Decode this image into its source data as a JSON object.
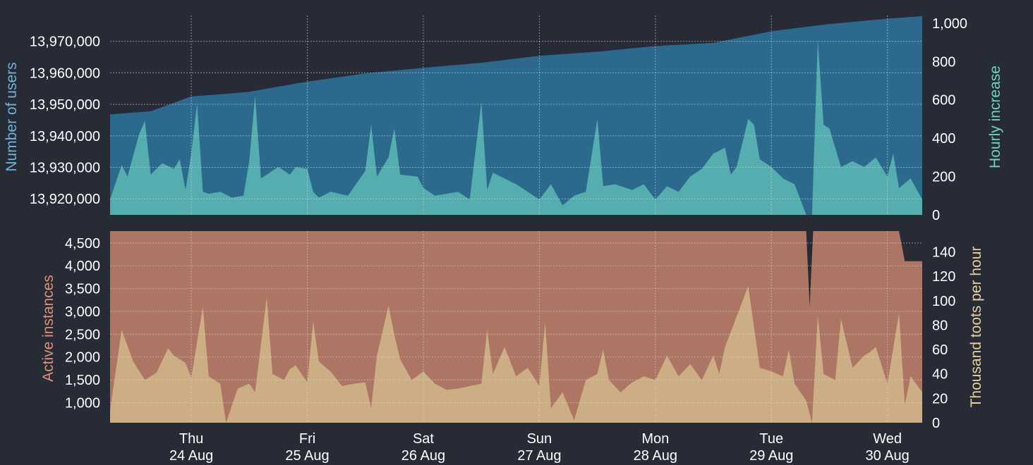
{
  "colors": {
    "background": "#272b36",
    "users": "#2c6a8d",
    "hourly_increase": "#56adb0",
    "instances": "#ad7563",
    "toots": "#cdae84",
    "users_label": "#6fb3d8",
    "hourly_label": "#6fd3c2",
    "instances_label": "#e0907a",
    "toots_label": "#e6d29a"
  },
  "chart_data": [
    {
      "type": "area",
      "x_ticks": [
        {
          "day": "Thu",
          "date": "24 Aug"
        },
        {
          "day": "Fri",
          "date": "25 Aug"
        },
        {
          "day": "Sat",
          "date": "26 Aug"
        },
        {
          "day": "Sun",
          "date": "27 Aug"
        },
        {
          "day": "Mon",
          "date": "28 Aug"
        },
        {
          "day": "Tue",
          "date": "29 Aug"
        },
        {
          "day": "Wed",
          "date": "30 Aug"
        }
      ],
      "x_range_days": [
        -0.7,
        6.3
      ],
      "ylabel_left": "Number of users",
      "ylabel_right": "Hourly increase",
      "ylim_left": [
        13914900,
        13978200
      ],
      "ylim_right": [
        0,
        1040
      ],
      "yticks_left": [
        "13,920,000",
        "13,930,000",
        "13,940,000",
        "13,950,000",
        "13,960,000",
        "13,970,000"
      ],
      "yticks_right": [
        "0",
        "200",
        "400",
        "600",
        "800",
        "1,000"
      ],
      "grid": true,
      "series": [
        {
          "name": "Number of users",
          "axis": "left",
          "points": [
            [
              -0.7,
              13946800
            ],
            [
              -0.35,
              13947800
            ],
            [
              0,
              13952500
            ],
            [
              0.3,
              13953300
            ],
            [
              0.5,
              13954000
            ],
            [
              1,
              13957200
            ],
            [
              1.5,
              13959800
            ],
            [
              2,
              13961600
            ],
            [
              2.5,
              13963200
            ],
            [
              3,
              13965400
            ],
            [
              3.5,
              13966700
            ],
            [
              4,
              13968500
            ],
            [
              4.5,
              13969500
            ],
            [
              5,
              13973200
            ],
            [
              5.3,
              13974600
            ],
            [
              5.5,
              13975500
            ],
            [
              6,
              13977200
            ],
            [
              6.3,
              13978000
            ]
          ]
        },
        {
          "name": "Hourly increase",
          "axis": "right",
          "points": [
            [
              -0.7,
              80
            ],
            [
              -0.6,
              260
            ],
            [
              -0.55,
              200
            ],
            [
              -0.45,
              420
            ],
            [
              -0.4,
              490
            ],
            [
              -0.35,
              210
            ],
            [
              -0.25,
              270
            ],
            [
              -0.15,
              240
            ],
            [
              -0.1,
              290
            ],
            [
              -0.05,
              130
            ],
            [
              0,
              320
            ],
            [
              0.05,
              580
            ],
            [
              0.1,
              120
            ],
            [
              0.15,
              110
            ],
            [
              0.25,
              120
            ],
            [
              0.35,
              90
            ],
            [
              0.45,
              100
            ],
            [
              0.5,
              280
            ],
            [
              0.55,
              620
            ],
            [
              0.6,
              190
            ],
            [
              0.7,
              230
            ],
            [
              0.75,
              250
            ],
            [
              0.85,
              210
            ],
            [
              0.9,
              250
            ],
            [
              1,
              240
            ],
            [
              1.05,
              120
            ],
            [
              1.1,
              90
            ],
            [
              1.2,
              120
            ],
            [
              1.35,
              100
            ],
            [
              1.5,
              230
            ],
            [
              1.55,
              470
            ],
            [
              1.6,
              200
            ],
            [
              1.7,
              300
            ],
            [
              1.75,
              450
            ],
            [
              1.8,
              210
            ],
            [
              1.95,
              200
            ],
            [
              2,
              140
            ],
            [
              2.1,
              100
            ],
            [
              2.3,
              120
            ],
            [
              2.4,
              80
            ],
            [
              2.5,
              590
            ],
            [
              2.55,
              130
            ],
            [
              2.6,
              220
            ],
            [
              2.7,
              190
            ],
            [
              2.8,
              160
            ],
            [
              2.9,
              120
            ],
            [
              3,
              80
            ],
            [
              3.1,
              160
            ],
            [
              3.2,
              50
            ],
            [
              3.3,
              100
            ],
            [
              3.4,
              120
            ],
            [
              3.5,
              500
            ],
            [
              3.55,
              150
            ],
            [
              3.65,
              160
            ],
            [
              3.8,
              130
            ],
            [
              3.9,
              160
            ],
            [
              4,
              80
            ],
            [
              4.1,
              150
            ],
            [
              4.2,
              120
            ],
            [
              4.3,
              200
            ],
            [
              4.4,
              240
            ],
            [
              4.5,
              320
            ],
            [
              4.6,
              350
            ],
            [
              4.65,
              210
            ],
            [
              4.7,
              250
            ],
            [
              4.8,
              500
            ],
            [
              4.85,
              470
            ],
            [
              4.9,
              290
            ],
            [
              5,
              250
            ],
            [
              5.1,
              190
            ],
            [
              5.2,
              160
            ],
            [
              5.3,
              0
            ],
            [
              5.35,
              0
            ],
            [
              5.4,
              910
            ],
            [
              5.45,
              470
            ],
            [
              5.5,
              450
            ],
            [
              5.6,
              250
            ],
            [
              5.7,
              280
            ],
            [
              5.8,
              250
            ],
            [
              5.9,
              300
            ],
            [
              6,
              200
            ],
            [
              6.05,
              320
            ],
            [
              6.1,
              140
            ],
            [
              6.2,
              190
            ],
            [
              6.3,
              80
            ]
          ]
        }
      ]
    },
    {
      "type": "area",
      "x_ticks_shared_with": 0,
      "ylabel_left": "Active instances",
      "ylabel_right": "Thousand toots per hour",
      "ylim_left": [
        560,
        4760
      ],
      "ylim_right": [
        0,
        157
      ],
      "yticks_left": [
        "1,000",
        "1,500",
        "2,000",
        "2,500",
        "3,000",
        "3,500",
        "4,000",
        "4,500"
      ],
      "yticks_right": [
        "0",
        "20",
        "40",
        "60",
        "80",
        "100",
        "120",
        "140"
      ],
      "grid": true,
      "series": [
        {
          "name": "Active instances",
          "axis": "left",
          "points": [
            [
              -0.7,
              4770
            ],
            [
              5.3,
              4770
            ],
            [
              5.33,
              3100
            ],
            [
              5.36,
              4770
            ],
            [
              6.1,
              4770
            ],
            [
              6.15,
              4100
            ],
            [
              6.3,
              4100
            ]
          ]
        },
        {
          "name": "Thousand toots per hour",
          "axis": "right",
          "points": [
            [
              -0.7,
              10
            ],
            [
              -0.6,
              76
            ],
            [
              -0.5,
              50
            ],
            [
              -0.4,
              35
            ],
            [
              -0.3,
              41
            ],
            [
              -0.2,
              61
            ],
            [
              -0.15,
              55
            ],
            [
              -0.05,
              49
            ],
            [
              0,
              37
            ],
            [
              0.1,
              95
            ],
            [
              0.15,
              38
            ],
            [
              0.25,
              32
            ],
            [
              0.3,
              0
            ],
            [
              0.4,
              28
            ],
            [
              0.5,
              32
            ],
            [
              0.55,
              25
            ],
            [
              0.65,
              103
            ],
            [
              0.7,
              40
            ],
            [
              0.8,
              35
            ],
            [
              0.85,
              44
            ],
            [
              0.9,
              47
            ],
            [
              1,
              33
            ],
            [
              1.05,
              83
            ],
            [
              1.1,
              50
            ],
            [
              1.2,
              42
            ],
            [
              1.3,
              30
            ],
            [
              1.4,
              32
            ],
            [
              1.5,
              33
            ],
            [
              1.55,
              12
            ],
            [
              1.6,
              55
            ],
            [
              1.7,
              96
            ],
            [
              1.75,
              72
            ],
            [
              1.8,
              52
            ],
            [
              1.9,
              35
            ],
            [
              2,
              42
            ],
            [
              2.1,
              32
            ],
            [
              2.2,
              27
            ],
            [
              2.3,
              28
            ],
            [
              2.5,
              32
            ],
            [
              2.55,
              76
            ],
            [
              2.6,
              40
            ],
            [
              2.7,
              62
            ],
            [
              2.8,
              38
            ],
            [
              2.9,
              45
            ],
            [
              3,
              30
            ],
            [
              3.05,
              82
            ],
            [
              3.1,
              12
            ],
            [
              3.2,
              25
            ],
            [
              3.3,
              2
            ],
            [
              3.4,
              35
            ],
            [
              3.5,
              40
            ],
            [
              3.55,
              60
            ],
            [
              3.6,
              35
            ],
            [
              3.7,
              25
            ],
            [
              3.8,
              33
            ],
            [
              3.9,
              38
            ],
            [
              4,
              35
            ],
            [
              4.1,
              55
            ],
            [
              4.2,
              38
            ],
            [
              4.3,
              48
            ],
            [
              4.4,
              35
            ],
            [
              4.5,
              55
            ],
            [
              4.55,
              40
            ],
            [
              4.6,
              62
            ],
            [
              4.8,
              112
            ],
            [
              4.9,
              45
            ],
            [
              5,
              42
            ],
            [
              5.1,
              38
            ],
            [
              5.15,
              60
            ],
            [
              5.2,
              32
            ],
            [
              5.3,
              18
            ],
            [
              5.35,
              0
            ],
            [
              5.4,
              88
            ],
            [
              5.45,
              40
            ],
            [
              5.55,
              35
            ],
            [
              5.6,
              85
            ],
            [
              5.7,
              45
            ],
            [
              5.8,
              55
            ],
            [
              5.85,
              58
            ],
            [
              5.9,
              62
            ],
            [
              6,
              32
            ],
            [
              6.1,
              90
            ],
            [
              6.15,
              15
            ],
            [
              6.2,
              38
            ],
            [
              6.3,
              25
            ]
          ]
        }
      ]
    }
  ]
}
